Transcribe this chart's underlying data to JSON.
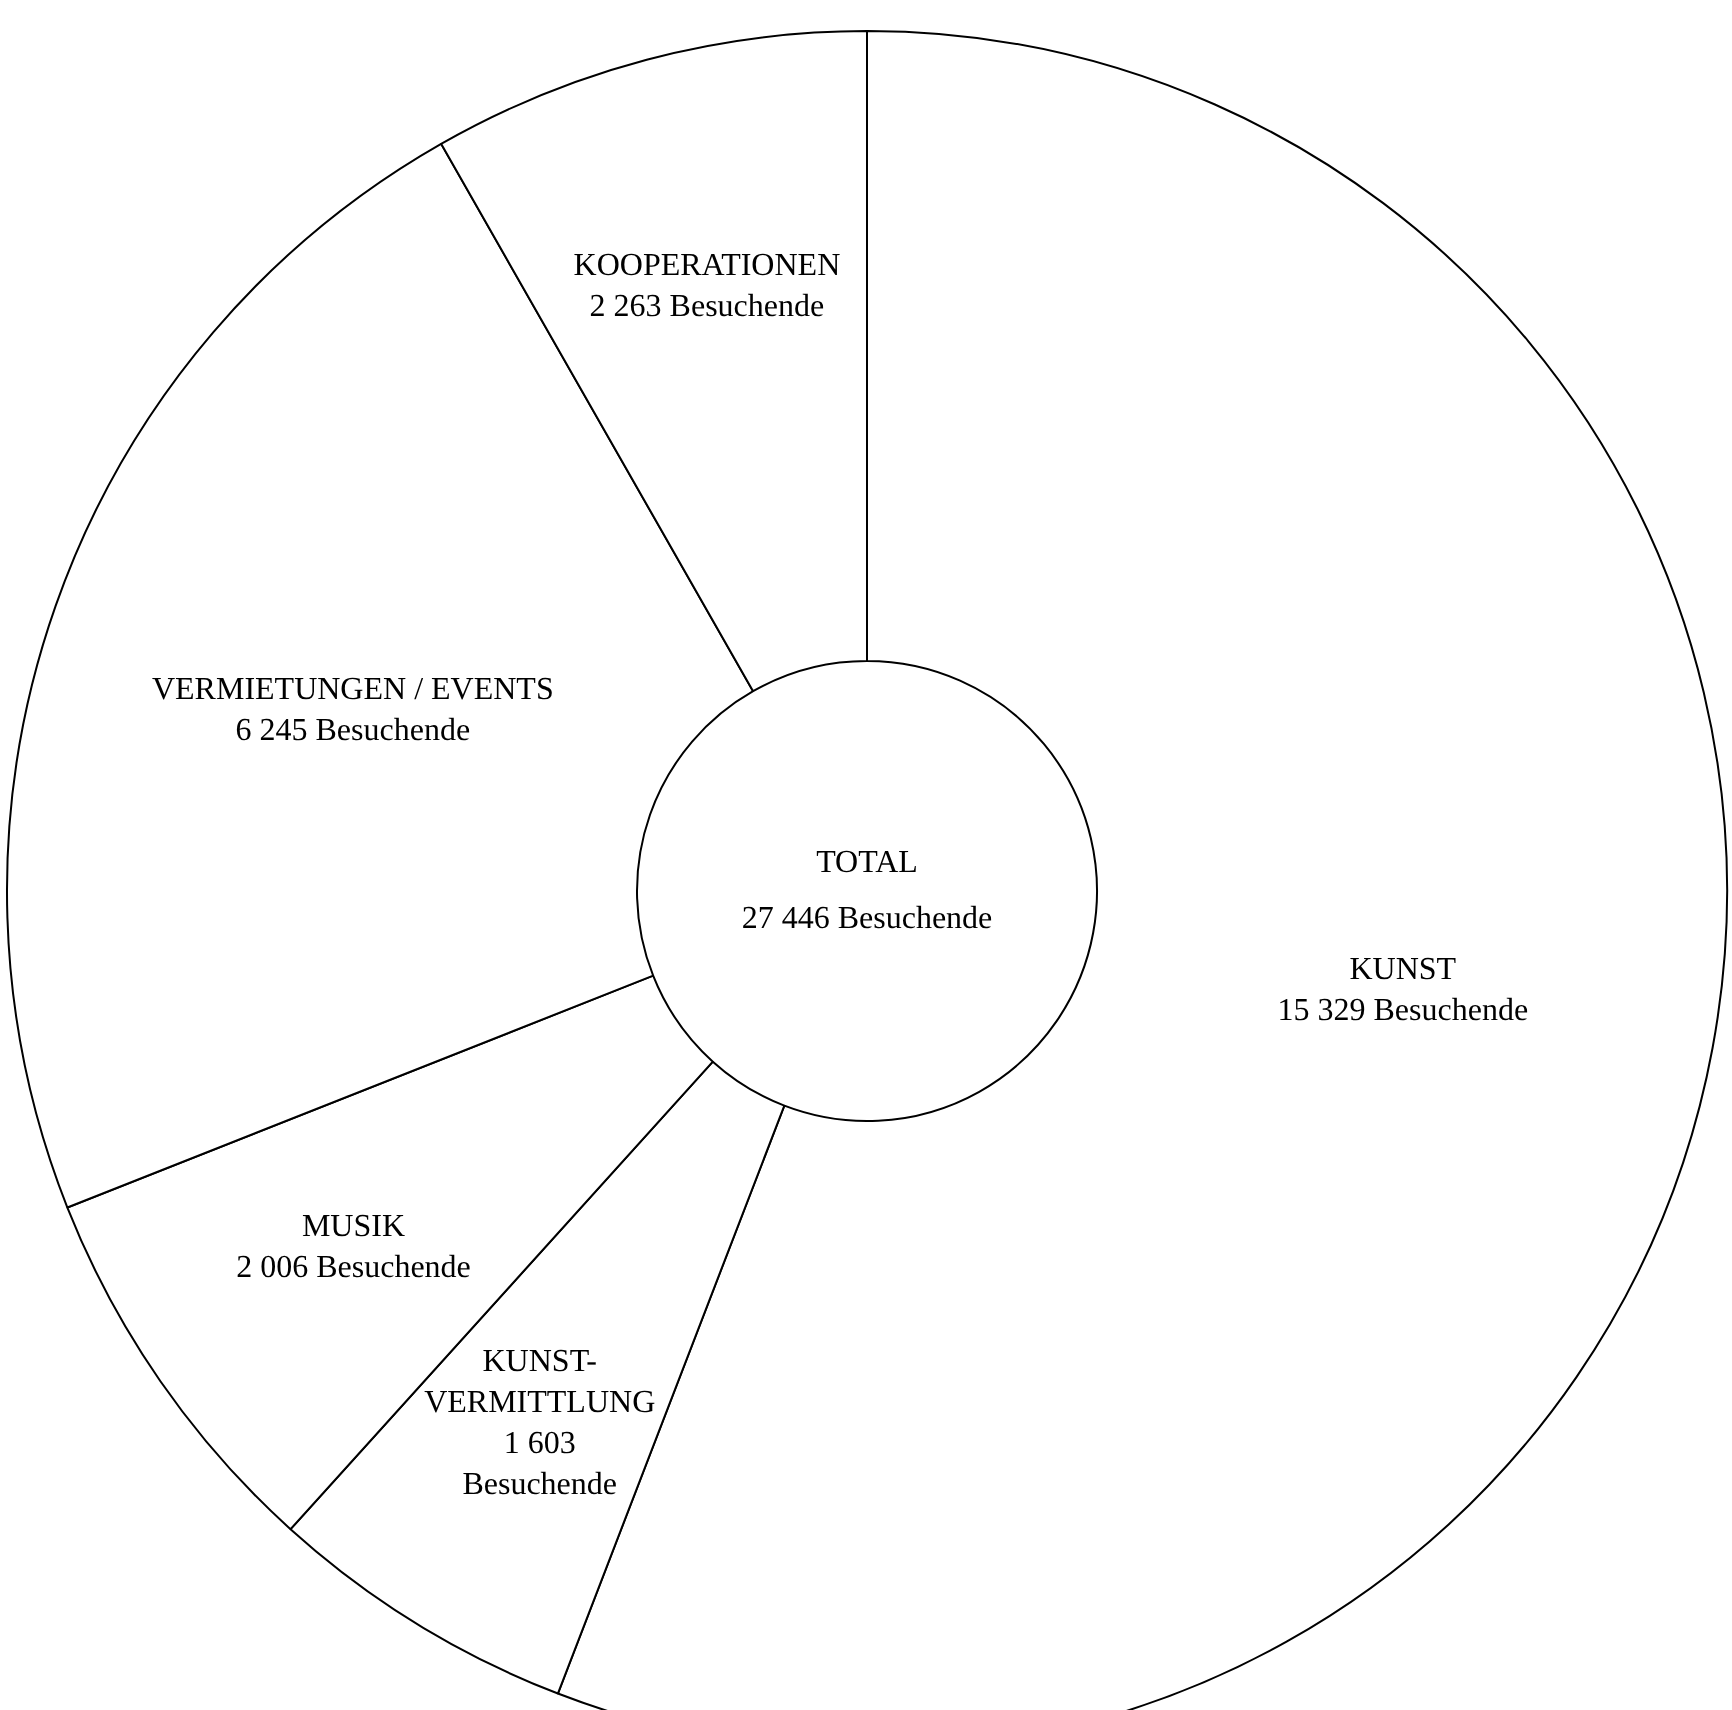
{
  "chart_data": {
    "type": "donut",
    "categories": [
      "KUNST",
      "KUNST-VERMITTLUNG",
      "MUSIK",
      "VERMIETUNGEN / EVENTS",
      "KOOPERATIONEN"
    ],
    "values": [
      15329,
      1603,
      2006,
      6245,
      2263
    ],
    "value_labels": [
      "15 329 Besuchende",
      "1 603 Besuchende",
      "2 006 Besuchende",
      "6 245 Besuchende",
      "2 263 Besuchende"
    ],
    "colors": [
      "#ffffff",
      "#ffffff",
      "#ffffff",
      "#ffffff",
      "#ffffff"
    ],
    "annotations": [
      "TOTAL",
      "27 446 Besuchende"
    ]
  }
}
